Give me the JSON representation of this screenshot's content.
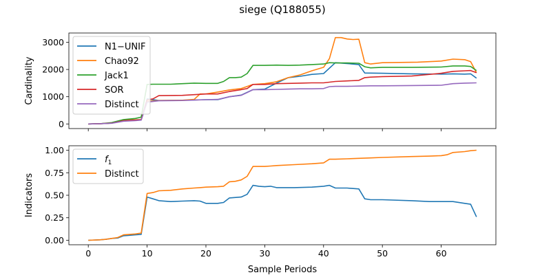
{
  "figure_title": "siege (Q188055)",
  "chart_data": [
    {
      "type": "line",
      "ylabel": "Cardinality",
      "xlim": [
        -3.3,
        69.3
      ],
      "ylim": [
        -170,
        3340
      ],
      "xticks": [
        0,
        10,
        20,
        30,
        40,
        50,
        60
      ],
      "yticks": [
        0,
        1000,
        2000,
        3000
      ],
      "ytick_labels": [
        "0",
        "1000",
        "2000",
        "3000"
      ],
      "legend_position": "upper-left",
      "series": [
        {
          "name": "N1−UNIF",
          "color": "#1f77b4",
          "x": [
            0,
            2,
            4,
            6,
            8,
            9,
            10,
            12,
            16,
            20,
            22,
            24,
            26,
            28,
            30,
            32,
            34,
            36,
            38,
            40,
            42,
            44,
            46,
            47,
            50,
            55,
            60,
            62,
            64,
            65,
            66
          ],
          "y": [
            0,
            10,
            30,
            130,
            150,
            160,
            920,
            860,
            870,
            890,
            890,
            1000,
            1060,
            1260,
            1280,
            1500,
            1700,
            1750,
            1820,
            1850,
            2250,
            2220,
            2180,
            1870,
            1860,
            1840,
            1830,
            1840,
            1830,
            1840,
            1680
          ]
        },
        {
          "name": "Chao92",
          "color": "#ff7f0e",
          "x": [
            0,
            2,
            4,
            6,
            8,
            9,
            10,
            12,
            16,
            18,
            19,
            20,
            22,
            24,
            26,
            28,
            30,
            32,
            34,
            36,
            38,
            40,
            41,
            42,
            43,
            44,
            45,
            46,
            47,
            48,
            50,
            53,
            56,
            60,
            62,
            64,
            65,
            66
          ],
          "y": [
            0,
            10,
            30,
            130,
            150,
            160,
            830,
            860,
            870,
            900,
            1100,
            1100,
            1170,
            1250,
            1300,
            1450,
            1480,
            1550,
            1700,
            1800,
            1950,
            2080,
            2400,
            3170,
            3170,
            3120,
            3100,
            3110,
            2250,
            2200,
            2250,
            2260,
            2270,
            2310,
            2380,
            2360,
            2290,
            1880
          ]
        },
        {
          "name": "Jack1",
          "color": "#2ca02c",
          "x": [
            0,
            2,
            4,
            6,
            8,
            9,
            10,
            11,
            14,
            18,
            20,
            22,
            23,
            24,
            25,
            26,
            27,
            28,
            30,
            32,
            34,
            36,
            38,
            40,
            41,
            42,
            44,
            46,
            47,
            48,
            50,
            55,
            60,
            62,
            64,
            65,
            66
          ],
          "y": [
            0,
            10,
            50,
            160,
            200,
            250,
            1450,
            1460,
            1460,
            1500,
            1490,
            1490,
            1560,
            1700,
            1700,
            1720,
            1850,
            2150,
            2150,
            2160,
            2150,
            2160,
            2180,
            2200,
            2250,
            2240,
            2240,
            2230,
            2100,
            2060,
            2080,
            2080,
            2090,
            2130,
            2130,
            2110,
            1960
          ]
        },
        {
          "name": "SOR",
          "color": "#d62728",
          "x": [
            0,
            2,
            4,
            6,
            8,
            9,
            10,
            11,
            12,
            16,
            20,
            22,
            24,
            26,
            27,
            28,
            30,
            32,
            34,
            36,
            38,
            40,
            42,
            44,
            46,
            47,
            48,
            50,
            55,
            60,
            62,
            64,
            65,
            66
          ],
          "y": [
            0,
            10,
            30,
            120,
            140,
            150,
            880,
            920,
            1040,
            1050,
            1100,
            1100,
            1190,
            1260,
            1300,
            1450,
            1450,
            1480,
            1490,
            1500,
            1510,
            1510,
            1560,
            1580,
            1600,
            1700,
            1720,
            1740,
            1760,
            1860,
            1930,
            1950,
            1960,
            1880
          ]
        },
        {
          "name": "Distinct",
          "color": "#9467bd",
          "x": [
            0,
            2,
            4,
            6,
            8,
            9,
            10,
            12,
            16,
            20,
            22,
            24,
            26,
            27,
            28,
            30,
            32,
            34,
            36,
            38,
            40,
            41,
            42,
            44,
            46,
            48,
            50,
            55,
            60,
            62,
            64,
            66
          ],
          "y": [
            0,
            10,
            25,
            100,
            120,
            140,
            800,
            850,
            860,
            890,
            900,
            1000,
            1050,
            1150,
            1260,
            1260,
            1270,
            1280,
            1290,
            1290,
            1300,
            1370,
            1380,
            1380,
            1390,
            1400,
            1400,
            1410,
            1420,
            1480,
            1500,
            1510
          ]
        }
      ]
    },
    {
      "type": "line",
      "xlabel": "Sample Periods",
      "ylabel": "Indicators",
      "xlim": [
        -3.3,
        69.3
      ],
      "ylim": [
        -0.05,
        1.05
      ],
      "xticks": [
        0,
        10,
        20,
        30,
        40,
        50,
        60
      ],
      "yticks": [
        0,
        0.25,
        0.5,
        0.75,
        1.0
      ],
      "ytick_labels": [
        "0.00",
        "0.25",
        "0.50",
        "0.75",
        "1.00"
      ],
      "legend_position": "upper-left",
      "series": [
        {
          "name": "f1",
          "color": "#1f77b4",
          "x": [
            0,
            2,
            3,
            4,
            5,
            6,
            7,
            8,
            9,
            10,
            11,
            12,
            14,
            16,
            18,
            19,
            20,
            21,
            22,
            23,
            24,
            26,
            27,
            28,
            29,
            30,
            31,
            32,
            33,
            35,
            38,
            40,
            41,
            42,
            44,
            46,
            47,
            48,
            50,
            55,
            58,
            60,
            62,
            64,
            65,
            66
          ],
          "y": [
            0,
            0.005,
            0.01,
            0.02,
            0.025,
            0.05,
            0.055,
            0.06,
            0.065,
            0.48,
            0.46,
            0.44,
            0.43,
            0.435,
            0.44,
            0.435,
            0.41,
            0.41,
            0.41,
            0.42,
            0.47,
            0.48,
            0.51,
            0.61,
            0.6,
            0.595,
            0.6,
            0.585,
            0.585,
            0.585,
            0.59,
            0.6,
            0.61,
            0.58,
            0.58,
            0.57,
            0.46,
            0.45,
            0.45,
            0.44,
            0.43,
            0.43,
            0.43,
            0.41,
            0.4,
            0.26
          ]
        },
        {
          "name": "Distinct",
          "color": "#ff7f0e",
          "x": [
            0,
            2,
            3,
            4,
            5,
            6,
            7,
            8,
            9,
            10,
            11,
            12,
            14,
            16,
            18,
            19,
            20,
            22,
            23,
            24,
            25,
            26,
            27,
            28,
            30,
            31,
            32,
            35,
            38,
            40,
            41,
            42,
            44,
            46,
            48,
            50,
            55,
            58,
            60,
            61,
            62,
            64,
            65,
            66
          ],
          "y": [
            0,
            0.005,
            0.01,
            0.02,
            0.03,
            0.06,
            0.065,
            0.07,
            0.08,
            0.52,
            0.53,
            0.55,
            0.555,
            0.57,
            0.58,
            0.585,
            0.59,
            0.595,
            0.6,
            0.65,
            0.655,
            0.67,
            0.71,
            0.82,
            0.82,
            0.825,
            0.83,
            0.84,
            0.85,
            0.86,
            0.9,
            0.9,
            0.905,
            0.91,
            0.915,
            0.92,
            0.93,
            0.935,
            0.94,
            0.95,
            0.975,
            0.985,
            0.995,
            1.0
          ]
        }
      ]
    }
  ]
}
